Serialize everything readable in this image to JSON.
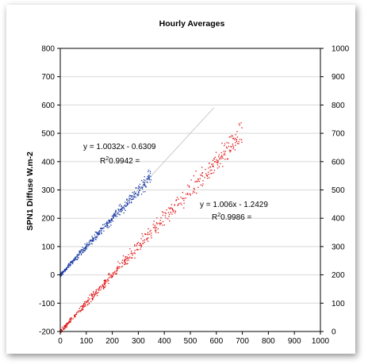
{
  "chart_data": {
    "type": "scatter",
    "title": "Hourly Averages",
    "ylabel": "SPN1 Diffuse W.m-2",
    "xlabel": "",
    "xlim": [
      0,
      1000
    ],
    "ylim": [
      -200,
      800
    ],
    "y2lim": [
      0,
      1000
    ],
    "xticks": [
      "0",
      "100",
      "200",
      "300",
      "400",
      "500",
      "600",
      "700",
      "800",
      "900",
      "1000"
    ],
    "yticks": [
      "-200",
      "-100",
      "0",
      "100",
      "200",
      "300",
      "400",
      "500",
      "600",
      "700",
      "800"
    ],
    "y2ticks": [
      "0",
      "100",
      "200",
      "300",
      "400",
      "500",
      "600",
      "700",
      "800",
      "900",
      "1000"
    ],
    "grid": "horizontal",
    "series": [
      {
        "axis": "left",
        "color": "#1f3fa8",
        "fit": {
          "slope": 1.0032,
          "intercept": -0.6309
        },
        "x_range": [
          0,
          350
        ],
        "equation": "y = 1.0032x - 0.6309",
        "r2_label": "R",
        "r2_exp": "2",
        "r2_value": "0.9942 ="
      },
      {
        "axis": "right",
        "color": "#e01010",
        "fit": {
          "slope": 1.006,
          "intercept": -1.2429
        },
        "x_range": [
          0,
          700
        ],
        "equation": "y = 1.006x - 1.2429",
        "r2_label": "R",
        "r2_exp": "2",
        "r2_value": "0.9986 ="
      }
    ],
    "reference_line": {
      "color": "#c0c0c0",
      "x": [
        0,
        590
      ],
      "y": [
        0,
        590
      ]
    }
  }
}
